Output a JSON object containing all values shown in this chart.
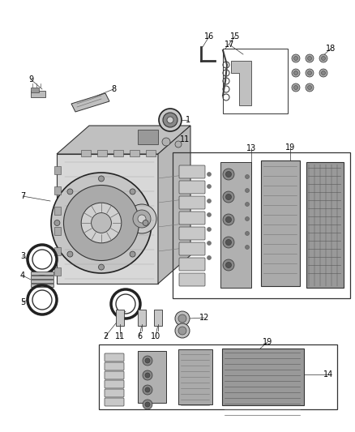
{
  "bg_color": "#ffffff",
  "fig_width": 4.38,
  "fig_height": 5.33,
  "dpi": 100,
  "line_color": "#000000",
  "text_color": "#000000",
  "label_fontsize": 7.0,
  "part_color_dark": "#555555",
  "part_color_mid": "#888888",
  "part_color_light": "#cccccc",
  "part_color_white": "#eeeeee"
}
